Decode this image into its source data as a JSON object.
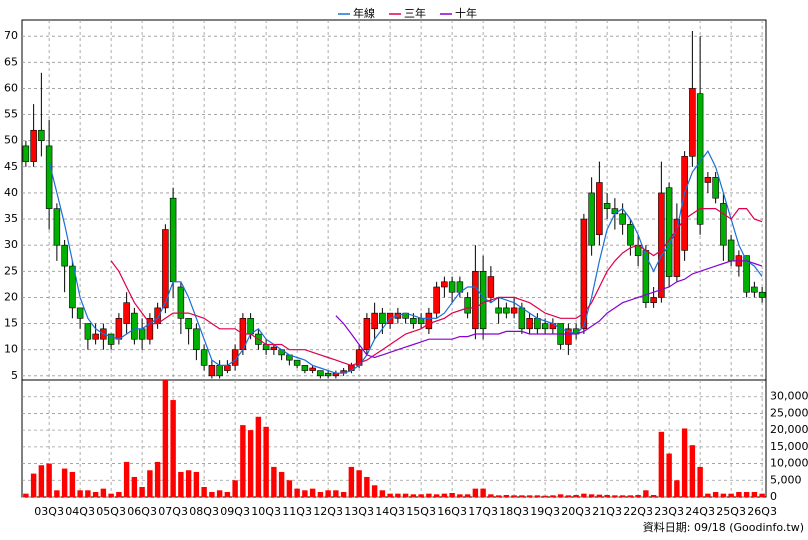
{
  "chart_data": {
    "type": "candlestick",
    "categories": [
      null,
      null,
      null,
      "03Q3",
      null,
      null,
      null,
      "04Q3",
      null,
      null,
      null,
      "05Q3",
      null,
      null,
      null,
      "06Q3",
      null,
      null,
      null,
      "07Q3",
      null,
      null,
      null,
      "08Q3",
      null,
      null,
      null,
      "09Q3",
      null,
      null,
      null,
      "10Q3",
      null,
      null,
      null,
      "11Q3",
      null,
      null,
      null,
      "12Q3",
      null,
      null,
      null,
      "13Q3",
      null,
      null,
      null,
      "14Q3",
      null,
      null,
      null,
      "15Q3",
      null,
      null,
      null,
      "16Q3",
      null,
      null,
      null,
      "17Q3",
      null,
      null,
      null,
      "18Q3",
      null,
      null,
      null,
      "19Q3",
      null,
      null,
      null,
      "20Q3",
      null,
      null,
      null,
      "21Q3",
      null,
      null,
      null,
      "22Q3",
      null,
      null,
      null,
      "23Q3",
      null,
      null,
      null,
      "24Q3",
      null,
      null,
      null,
      "25Q3",
      null,
      null,
      null,
      "26Q3"
    ],
    "open": [
      49,
      46,
      52,
      49,
      37,
      30,
      26,
      18,
      15,
      12,
      12,
      13,
      12,
      15,
      17,
      14,
      12,
      15,
      18,
      39,
      22,
      16,
      14,
      10,
      5,
      7,
      6,
      7,
      10,
      16,
      13,
      11,
      10,
      10,
      9,
      8,
      7,
      6,
      6,
      5.5,
      5,
      5.5,
      6,
      7,
      10,
      14,
      17,
      15,
      16,
      17,
      16,
      16,
      14,
      17,
      22,
      23,
      23,
      20,
      14,
      25,
      20,
      18,
      18,
      17,
      18,
      14,
      16,
      15,
      14,
      15,
      11,
      14,
      14,
      40,
      32,
      38,
      37,
      36,
      34,
      30,
      29,
      19,
      20,
      41,
      24,
      29,
      47,
      59,
      42,
      43,
      38,
      31,
      26,
      28,
      22,
      21
    ],
    "high": [
      50,
      57,
      63,
      54,
      38,
      31,
      27,
      18,
      15,
      15,
      15,
      13,
      17,
      21,
      18,
      16,
      17,
      19,
      34,
      41,
      23,
      16,
      15,
      11,
      8,
      8,
      8,
      11,
      17,
      17,
      14,
      12,
      11,
      10,
      9,
      8,
      7,
      7,
      6,
      6,
      6,
      6.5,
      7.5,
      11,
      17,
      19,
      18,
      17,
      18,
      17,
      17,
      17,
      18,
      23,
      24,
      24,
      24,
      21,
      30,
      28,
      26,
      20,
      19,
      20,
      19,
      17,
      17,
      16,
      16,
      15,
      15,
      15,
      36,
      43,
      46,
      40,
      39,
      38,
      35,
      32,
      30,
      22,
      46,
      42,
      38,
      48,
      71,
      70,
      44,
      44,
      40,
      32,
      29,
      28,
      23,
      22
    ],
    "low": [
      45,
      45,
      47,
      33,
      27,
      21,
      16,
      14,
      10,
      11,
      10,
      10,
      11,
      13,
      11,
      10,
      11,
      14,
      17,
      20,
      13,
      11,
      8,
      6,
      4.5,
      4.5,
      5.5,
      6,
      9,
      12,
      10,
      9,
      9,
      8,
      7,
      6.5,
      5.5,
      5.5,
      4.5,
      4.5,
      4.5,
      5,
      5.5,
      6.5,
      9,
      12,
      13,
      14,
      15,
      15,
      14,
      14,
      13,
      16,
      20,
      19,
      20,
      16,
      12,
      12,
      19,
      15,
      16,
      16,
      13,
      13,
      13,
      13,
      13,
      10,
      9,
      12,
      13,
      28,
      30,
      35,
      33,
      32,
      28,
      26,
      18,
      18,
      19,
      22,
      23,
      27,
      45,
      32,
      40,
      38,
      27,
      26,
      24,
      20,
      20,
      19
    ],
    "close": [
      46,
      52,
      50,
      37,
      30,
      26,
      18,
      16,
      12,
      13,
      14,
      11,
      16,
      19,
      12,
      12,
      16,
      18,
      33,
      23,
      16,
      14,
      10,
      7,
      7,
      5,
      7,
      10,
      16,
      13,
      11,
      10,
      10.5,
      9,
      8,
      7,
      6,
      6.5,
      5,
      5,
      5.5,
      6,
      7,
      10,
      16,
      17,
      15,
      17,
      17,
      16,
      15,
      15,
      17,
      22,
      23,
      21,
      21,
      17,
      25,
      14,
      24,
      17,
      17,
      18,
      14,
      16,
      14,
      14,
      15,
      11,
      14,
      13,
      35,
      30,
      42,
      37,
      36,
      34,
      30,
      28,
      19,
      20,
      40,
      24,
      35,
      47,
      60,
      34,
      43,
      39,
      30,
      27,
      28,
      21,
      21,
      20
    ],
    "up_color": "#ff0000",
    "down_color": "#00b000",
    "ylim": [
      4.2,
      73.1
    ],
    "yticks": [
      5,
      10,
      15,
      20,
      25,
      30,
      35,
      40,
      45,
      50,
      55,
      60,
      65,
      70
    ],
    "grid": true,
    "series": [
      {
        "name": "年線",
        "color": "#1a6fd8",
        "values": [
          null,
          null,
          null,
          46,
          40,
          34,
          27,
          20,
          16,
          14,
          13,
          12.5,
          12,
          13,
          14,
          14,
          15,
          16,
          19,
          23,
          23,
          20,
          16,
          12,
          8,
          7,
          7,
          8,
          10,
          13,
          14,
          12,
          11,
          10,
          9,
          8.5,
          8,
          7,
          6.5,
          6,
          5.5,
          5.5,
          6,
          7,
          9,
          12,
          14,
          16,
          16.5,
          17,
          16.5,
          16,
          16,
          16,
          17,
          19,
          21,
          22,
          22,
          20,
          19,
          20,
          19.5,
          19,
          18,
          17,
          16,
          15.5,
          15,
          14,
          13.5,
          13,
          14.5,
          20,
          27,
          33,
          36,
          37,
          35,
          32,
          28,
          25,
          28,
          30,
          33,
          40,
          44,
          46,
          48,
          45,
          40,
          35,
          30,
          27,
          26,
          24
        ]
      },
      {
        "name": "三年",
        "color": "#e0004a",
        "values": [
          null,
          null,
          null,
          null,
          null,
          null,
          null,
          null,
          null,
          null,
          null,
          27,
          25,
          22,
          19,
          17,
          15,
          15,
          16,
          17,
          17,
          17,
          16.5,
          16,
          15,
          14,
          14,
          14,
          13,
          13,
          12,
          11,
          11,
          11,
          10,
          10,
          10,
          9.5,
          9,
          8.5,
          8,
          7.5,
          7,
          7.5,
          8,
          9,
          10,
          11,
          12,
          13,
          13.5,
          14,
          15,
          15.5,
          16,
          17,
          17.5,
          18,
          18,
          19,
          19.5,
          20,
          20,
          20,
          19.5,
          19,
          18,
          17,
          16.5,
          16,
          16,
          16,
          17,
          19,
          22,
          25,
          27,
          28.5,
          29.5,
          30,
          29,
          28,
          29,
          31,
          33,
          35,
          36,
          37,
          37,
          37,
          36,
          35,
          37,
          37,
          35,
          34.5
        ]
      },
      {
        "name": "十年",
        "color": "#8a00d4",
        "values": [
          null,
          null,
          null,
          null,
          null,
          null,
          null,
          null,
          null,
          null,
          null,
          null,
          null,
          null,
          null,
          null,
          null,
          null,
          null,
          null,
          null,
          null,
          null,
          null,
          null,
          null,
          null,
          null,
          null,
          null,
          null,
          null,
          null,
          null,
          null,
          null,
          null,
          null,
          null,
          null,
          16.5,
          15,
          13,
          11,
          9,
          8.5,
          9,
          9.5,
          10,
          10.5,
          11,
          11.5,
          12,
          12,
          12,
          12,
          12.5,
          12.5,
          13,
          13,
          13,
          13,
          13.5,
          13.5,
          13.5,
          13,
          13,
          13,
          13,
          13,
          13,
          13,
          13.5,
          14.5,
          15.5,
          17,
          18,
          19,
          19.5,
          20,
          20.5,
          21,
          21.5,
          22,
          23,
          23.5,
          24.5,
          25,
          25.5,
          26,
          26.5,
          27,
          27,
          27,
          26.5,
          26
        ]
      }
    ],
    "volume": {
      "color": "#ff0000",
      "values": [
        1000,
        7000,
        9500,
        10000,
        2000,
        8500,
        7500,
        2000,
        2000,
        1500,
        2500,
        1000,
        1500,
        10500,
        6000,
        3000,
        8000,
        10500,
        35000,
        29000,
        7500,
        8000,
        7500,
        3000,
        1500,
        2000,
        1500,
        5000,
        21500,
        20000,
        24000,
        21000,
        9000,
        7500,
        5000,
        2500,
        2000,
        2500,
        1500,
        2000,
        2000,
        1500,
        9000,
        8000,
        6000,
        3500,
        2000,
        1000,
        1000,
        1000,
        800,
        800,
        1000,
        800,
        1000,
        1200,
        800,
        800,
        2500,
        2500,
        800,
        500,
        600,
        500,
        500,
        500,
        500,
        400,
        500,
        800,
        500,
        600,
        1000,
        800,
        700,
        600,
        500,
        500,
        500,
        600,
        2000,
        600,
        19500,
        13000,
        5000,
        20500,
        15500,
        9000,
        1000,
        1500,
        1000,
        1000,
        1500,
        1500,
        1500,
        1000
      ],
      "y2lim": [
        0,
        35000
      ],
      "y2ticks": [
        0,
        {
          "value": 5000,
          "label": "5,000"
        },
        {
          "value": 10000,
          "label": "10,000"
        },
        {
          "value": 15000,
          "label": "15,000"
        },
        {
          "value": 20000,
          "label": "20,000"
        },
        {
          "value": 25000,
          "label": "25,000"
        },
        {
          "value": 30000,
          "label": "30,000"
        }
      ]
    },
    "note": "資料日期: 09/18 (Goodinfo.tw)"
  }
}
